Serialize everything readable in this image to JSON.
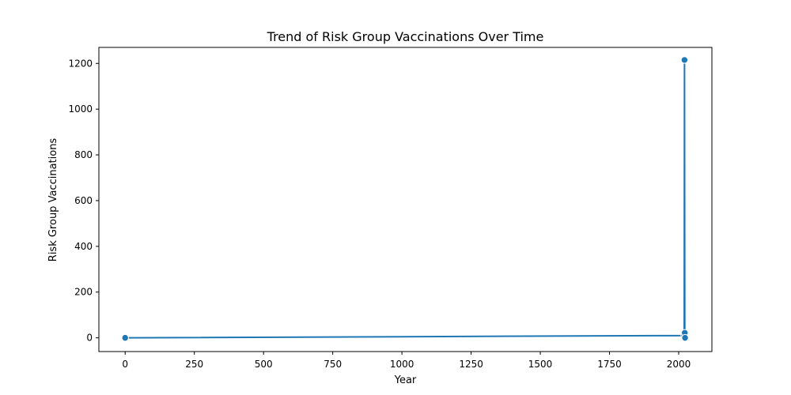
{
  "chart_data": {
    "type": "line",
    "title": "Trend of Risk Group Vaccinations Over Time",
    "xlabel": "Year",
    "ylabel": "Risk Group Vaccinations",
    "xlim": [
      -95,
      2120
    ],
    "ylim": [
      -60,
      1270
    ],
    "xticks": [
      0,
      250,
      500,
      750,
      1000,
      1250,
      1500,
      1750,
      2000
    ],
    "yticks": [
      0,
      200,
      400,
      600,
      800,
      1000,
      1200
    ],
    "grid": false,
    "legend": "none",
    "series": [
      {
        "color": "#1f77b4",
        "points": [
          {
            "x": 0,
            "y": 0
          },
          {
            "x": 2020,
            "y": 10
          },
          {
            "x": 2021,
            "y": 1215
          },
          {
            "x": 2022,
            "y": 22
          },
          {
            "x": 2023,
            "y": 0
          }
        ]
      }
    ]
  }
}
